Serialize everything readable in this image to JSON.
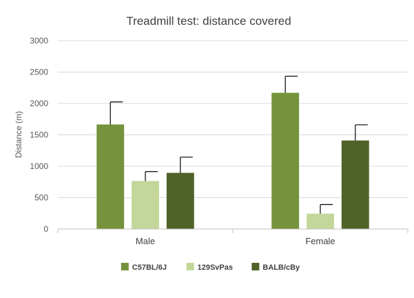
{
  "chart_data": {
    "type": "bar",
    "title": "Treadmill test: distance covered",
    "xlabel": "",
    "ylabel": "Distance (m)",
    "ylim": [
      0,
      3000
    ],
    "yticks": [
      0,
      500,
      1000,
      1500,
      2000,
      2500,
      3000
    ],
    "categories": [
      "Male",
      "Female"
    ],
    "grid": true,
    "legend": "bottom",
    "series": [
      {
        "name": "C57BL/6J",
        "color": "#76923c",
        "values": [
          1665,
          2170
        ],
        "errors": [
          360,
          265
        ]
      },
      {
        "name": "129SvPas",
        "color": "#c4d79b",
        "values": [
          765,
          245
        ],
        "errors": [
          150,
          145
        ]
      },
      {
        "name": "BALB/cBy",
        "color": "#4f6228",
        "values": [
          895,
          1410
        ],
        "errors": [
          250,
          250
        ]
      }
    ]
  }
}
